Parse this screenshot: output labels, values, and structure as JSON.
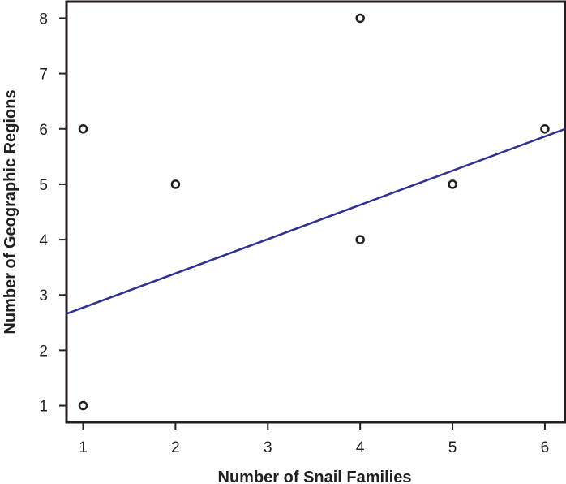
{
  "chart_data": {
    "type": "scatter",
    "title": "",
    "xlabel": "Number of Snail Families",
    "ylabel": "Number of Geographic Regions",
    "xlim": [
      0.82,
      6.22
    ],
    "ylim": [
      0.7,
      8.3
    ],
    "xticks": [
      1,
      2,
      3,
      4,
      5,
      6
    ],
    "yticks": [
      1,
      2,
      3,
      4,
      5,
      6,
      7,
      8
    ],
    "grid": false,
    "legend": "none",
    "series": [
      {
        "points": [
          {
            "x": 1,
            "y": 1
          },
          {
            "x": 1,
            "y": 6
          },
          {
            "x": 2,
            "y": 5
          },
          {
            "x": 4,
            "y": 4
          },
          {
            "x": 4,
            "y": 8
          },
          {
            "x": 5,
            "y": 5
          },
          {
            "x": 6,
            "y": 6
          }
        ]
      }
    ],
    "trendline": {
      "type": "linear",
      "x": [
        0.82,
        6.22
      ],
      "y": [
        2.66,
        6.0
      ]
    },
    "colors": {
      "axis": "#231f20",
      "points": "#231f20",
      "trendline": "#2e3192"
    }
  }
}
